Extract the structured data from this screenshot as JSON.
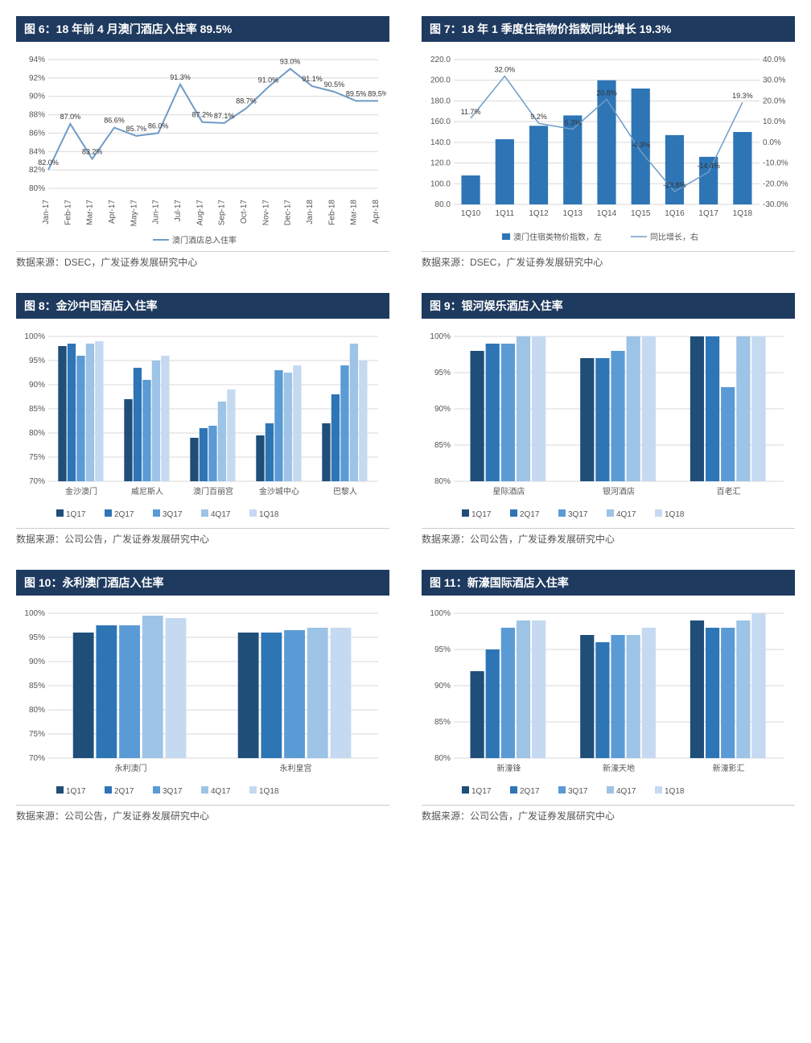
{
  "colors": {
    "header_bg": "#1f3a5f",
    "grid": "#d9d9d9",
    "axis": "#888888",
    "line_blue": "#6f9bc6",
    "series": [
      "#1f4e79",
      "#2e75b6",
      "#5b9bd5",
      "#9dc3e6",
      "#c5d9f1"
    ]
  },
  "chart6": {
    "title": "图 6：18 年前 4 月澳门酒店入住率 89.5%",
    "source": "数据来源：DSEC，广发证券发展研究中心",
    "legend": "澳门酒店总入住率",
    "x_labels": [
      "Jan-17",
      "Feb-17",
      "Mar-17",
      "Apr-17",
      "May-17",
      "Jun-17",
      "Jul-17",
      "Aug-17",
      "Sep-17",
      "Oct-17",
      "Nov-17",
      "Dec-17",
      "Jan-18",
      "Feb-18",
      "Mar-18",
      "Apr-18"
    ],
    "values": [
      82.0,
      87.0,
      83.2,
      86.6,
      85.7,
      86.0,
      91.3,
      87.2,
      87.1,
      88.7,
      91.0,
      93.0,
      91.1,
      90.5,
      89.5,
      89.5
    ],
    "ylim": [
      80,
      94
    ],
    "ytick_step": 2
  },
  "chart7": {
    "title": "图 7：18 年 1 季度住宿物价指数同比增长 19.3%",
    "source": "数据来源：DSEC，广发证券发展研究中心",
    "legend_bar": "澳门住宿类物价指数，左",
    "legend_line": "同比增长，右",
    "x_labels": [
      "1Q10",
      "1Q11",
      "1Q12",
      "1Q13",
      "1Q14",
      "1Q15",
      "1Q16",
      "1Q17",
      "1Q18"
    ],
    "bar_values": [
      108,
      143,
      156,
      166,
      200,
      192,
      147,
      126,
      150
    ],
    "line_values": [
      11.7,
      32.0,
      9.2,
      6.3,
      20.8,
      -4.3,
      -23.8,
      -14.4,
      19.3
    ],
    "y1_lim": [
      80,
      220
    ],
    "y1_step": 20,
    "y2_lim": [
      -30,
      40
    ],
    "y2_step": 10
  },
  "chart8": {
    "title": "图 8：金沙中国酒店入住率",
    "source": "数据来源：公司公告，广发证券发展研究中心",
    "series_labels": [
      "1Q17",
      "2Q17",
      "3Q17",
      "4Q17",
      "1Q18"
    ],
    "categories": [
      "金沙澳门",
      "威尼斯人",
      "澳门百丽宫",
      "金沙城中心",
      "巴黎人"
    ],
    "data": [
      [
        98,
        98.5,
        96,
        98.5,
        99
      ],
      [
        87,
        93.5,
        91,
        95,
        96
      ],
      [
        79,
        81,
        81.5,
        86.5,
        89
      ],
      [
        79.5,
        82,
        93,
        92.5,
        94
      ],
      [
        82,
        88,
        94,
        98.5,
        95
      ]
    ],
    "ylim": [
      70,
      100
    ],
    "ytick_step": 5
  },
  "chart9": {
    "title": "图 9：银河娱乐酒店入住率",
    "source": "数据来源：公司公告，广发证券发展研究中心",
    "series_labels": [
      "1Q17",
      "2Q17",
      "3Q17",
      "4Q17",
      "1Q18"
    ],
    "categories": [
      "星际酒店",
      "银河酒店",
      "百老汇"
    ],
    "data": [
      [
        98,
        99,
        99,
        100,
        100
      ],
      [
        97,
        97,
        98,
        100,
        100
      ],
      [
        100,
        100,
        93,
        100,
        100
      ]
    ],
    "ylim": [
      80,
      100
    ],
    "ytick_step": 5
  },
  "chart10": {
    "title": "图 10：永利澳门酒店入住率",
    "source": "数据来源：公司公告，广发证券发展研究中心",
    "series_labels": [
      "1Q17",
      "2Q17",
      "3Q17",
      "4Q17",
      "1Q18"
    ],
    "categories": [
      "永利澳门",
      "永利皇宫"
    ],
    "data": [
      [
        96,
        97.5,
        97.5,
        99.5,
        99
      ],
      [
        96,
        96,
        96.5,
        97,
        97
      ]
    ],
    "ylim": [
      70,
      100
    ],
    "ytick_step": 5
  },
  "chart11": {
    "title": "图 11：新濠国际酒店入住率",
    "source": "数据来源：公司公告，广发证券发展研究中心",
    "series_labels": [
      "1Q17",
      "2Q17",
      "3Q17",
      "4Q17",
      "1Q18"
    ],
    "categories": [
      "新濠锋",
      "新濠天地",
      "新濠影汇"
    ],
    "data": [
      [
        92,
        95,
        98,
        99,
        99
      ],
      [
        97,
        96,
        97,
        97,
        98
      ],
      [
        99,
        98,
        98,
        99,
        100
      ]
    ],
    "ylim": [
      80,
      100
    ],
    "ytick_step": 5
  }
}
